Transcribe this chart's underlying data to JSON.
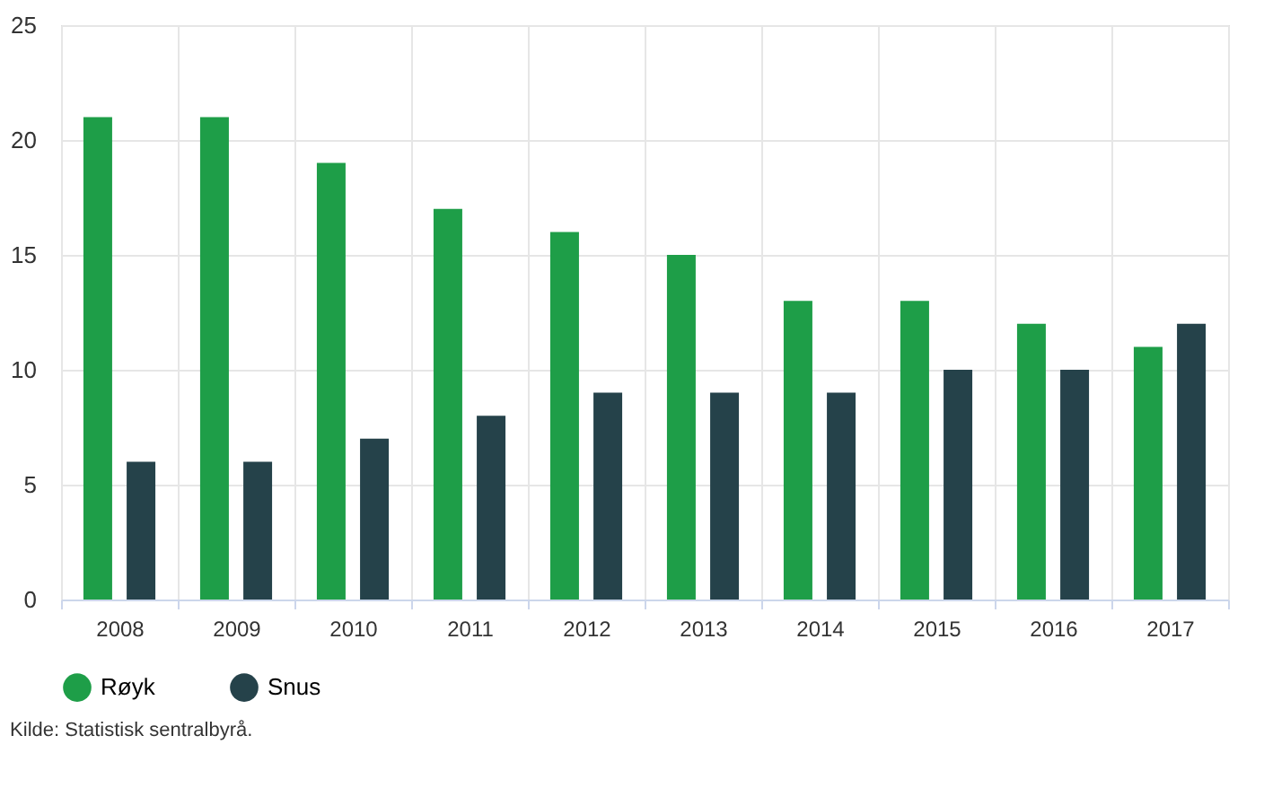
{
  "chart_data": {
    "type": "bar",
    "categories": [
      "2008",
      "2009",
      "2010",
      "2011",
      "2012",
      "2013",
      "2014",
      "2015",
      "2016",
      "2017"
    ],
    "series": [
      {
        "name": "Røyk",
        "color": "#1e9e48",
        "values": [
          21,
          21,
          19,
          17,
          16,
          15,
          13,
          13,
          12,
          11
        ]
      },
      {
        "name": "Snus",
        "color": "#25424a",
        "values": [
          6,
          6,
          7,
          8,
          9,
          9,
          9,
          10,
          10,
          12
        ]
      }
    ],
    "ylim": [
      0,
      25
    ],
    "yticks": [
      0,
      5,
      10,
      15,
      20,
      25
    ],
    "grid": true,
    "legend": "bottom",
    "annotations": [
      "Kilde: Statistisk sentralbyrå."
    ]
  }
}
